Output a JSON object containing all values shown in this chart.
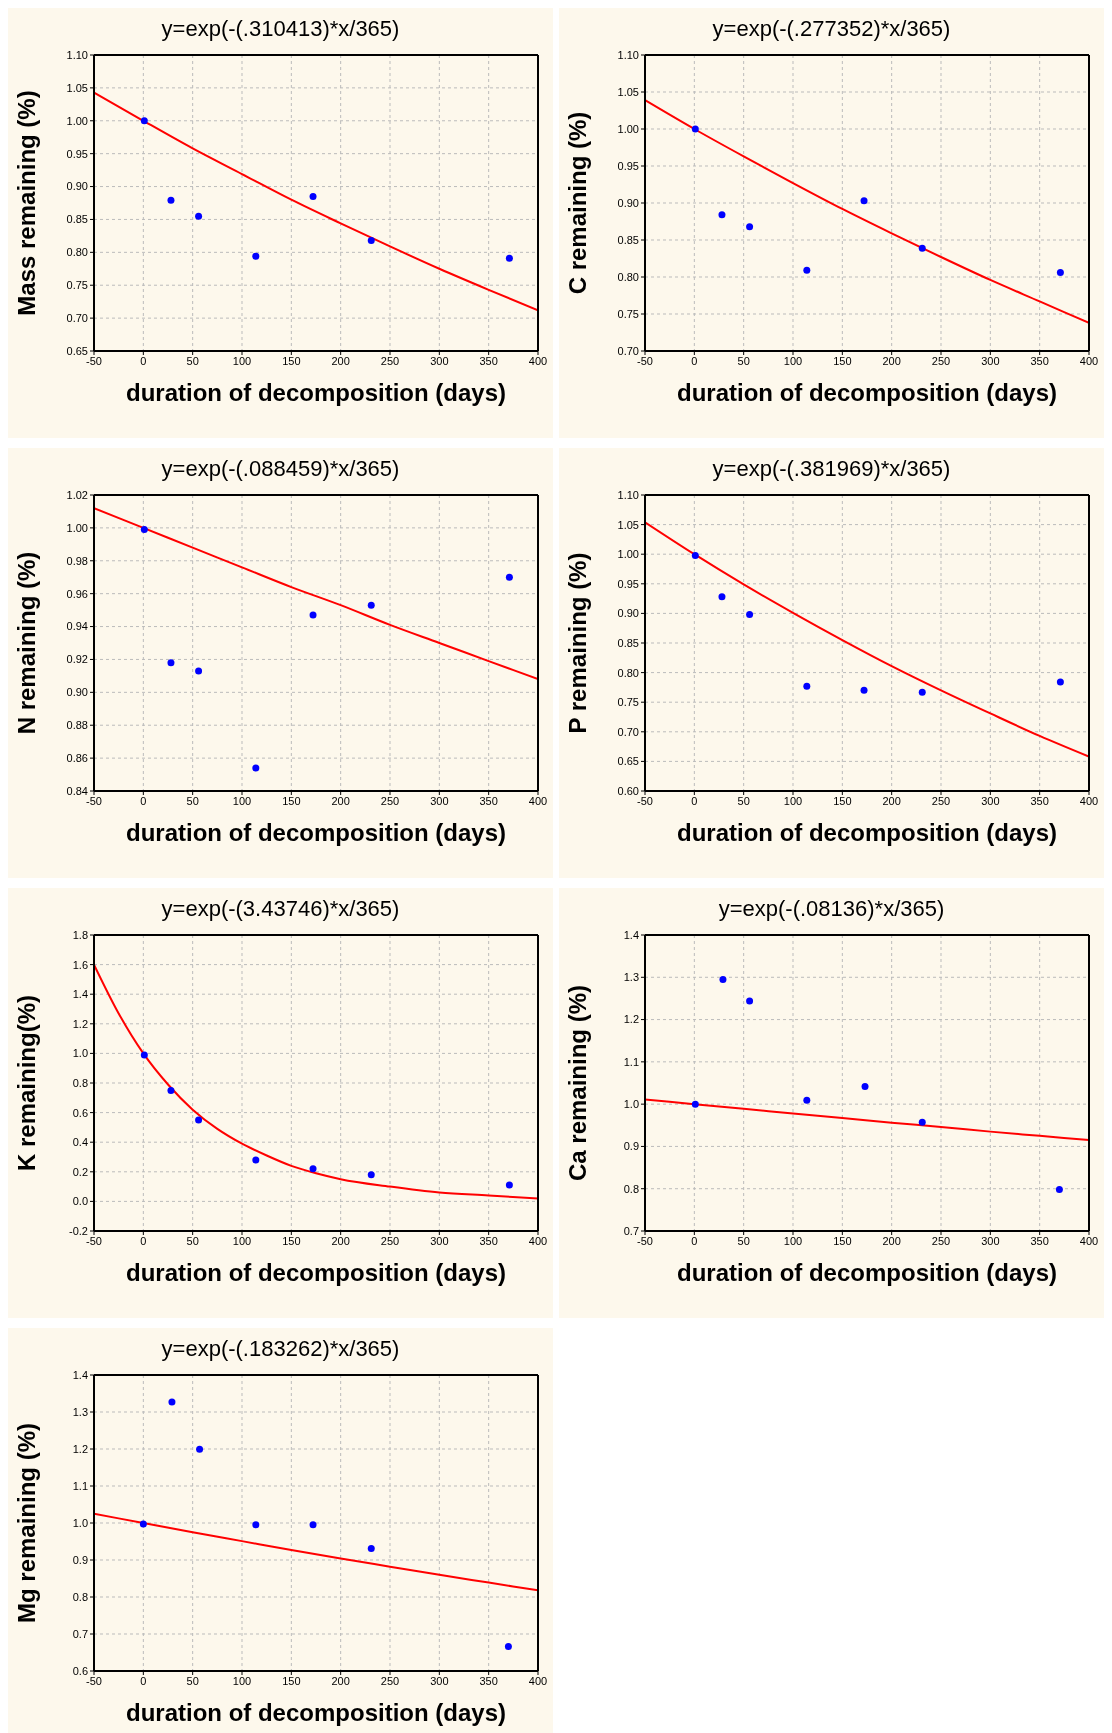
{
  "chart_data": [
    {
      "type": "scatter",
      "title": "y=exp(-(.310413)*x/365)",
      "xlabel": "duration of decomposition (days)",
      "ylabel": "Mass remaining (%)",
      "xlim": [
        -50,
        400
      ],
      "xticks": [
        -50,
        0,
        50,
        100,
        150,
        200,
        250,
        300,
        350,
        400
      ],
      "ylim": [
        0.65,
        1.1
      ],
      "yticks": [
        0.65,
        {
          "value": 0.7,
          "label": "0.70"
        },
        0.75,
        {
          "value": 0.8,
          "label": "0.80"
        },
        0.85,
        {
          "value": 0.9,
          "label": "0.90"
        },
        0.95,
        {
          "value": 1,
          "label": "1.00"
        },
        1.05,
        {
          "value": 1.1,
          "label": "1.10"
        }
      ],
      "grid": true,
      "series": [
        {
          "marker": "circle",
          "color": "#0000ff",
          "x": [
            1,
            28,
            56,
            114,
            172,
            231,
            371
          ],
          "values": [
            1.0,
            0.879,
            0.855,
            0.794,
            0.885,
            0.818,
            0.791
          ]
        },
        {
          "type": "line",
          "marker": "none",
          "color": "#ff0000",
          "x": [
            -50,
            0,
            50,
            100,
            150,
            200,
            250,
            300,
            350,
            400
          ],
          "values": [
            1.043,
            1.0,
            0.958,
            0.919,
            0.88,
            0.844,
            0.809,
            0.775,
            0.743,
            0.712
          ]
        }
      ]
    },
    {
      "type": "scatter",
      "title": "y=exp(-(.277352)*x/365)",
      "xlabel": "duration of decomposition (days)",
      "ylabel": "C remaining (%)",
      "xlim": [
        -50,
        400
      ],
      "xticks": [
        -50,
        0,
        50,
        100,
        150,
        200,
        250,
        300,
        350,
        400
      ],
      "ylim": [
        0.7,
        1.1
      ],
      "yticks": [
        {
          "value": 0.7,
          "label": "0.70"
        },
        0.75,
        {
          "value": 0.8,
          "label": "0.80"
        },
        0.85,
        {
          "value": 0.9,
          "label": "0.90"
        },
        0.95,
        {
          "value": 1,
          "label": "1.00"
        },
        1.05,
        {
          "value": 1.1,
          "label": "1.10"
        }
      ],
      "grid": true,
      "series": [
        {
          "marker": "circle",
          "color": "#0000ff",
          "x": [
            1,
            28,
            56,
            114,
            172,
            231,
            371
          ],
          "values": [
            1.0,
            0.884,
            0.868,
            0.809,
            0.903,
            0.839,
            0.806
          ]
        },
        {
          "type": "line",
          "marker": "none",
          "color": "#ff0000",
          "x": [
            -50,
            0,
            50,
            100,
            150,
            200,
            250,
            300,
            350,
            400
          ],
          "values": [
            1.039,
            1.0,
            0.963,
            0.927,
            0.892,
            0.859,
            0.827,
            0.796,
            0.767,
            0.738
          ]
        }
      ]
    },
    {
      "type": "scatter",
      "title": "y=exp(-(.088459)*x/365)",
      "xlabel": "duration of decomposition (days)",
      "ylabel": "N remaining (%)",
      "xlim": [
        -50,
        400
      ],
      "xticks": [
        -50,
        0,
        50,
        100,
        150,
        200,
        250,
        300,
        350,
        400
      ],
      "ylim": [
        0.84,
        1.02
      ],
      "yticks": [
        0.84,
        0.86,
        0.88,
        {
          "value": 0.9,
          "label": "0.90"
        },
        0.92,
        0.94,
        0.96,
        0.98,
        {
          "value": 1,
          "label": "1.00"
        },
        1.02
      ],
      "grid": true,
      "series": [
        {
          "marker": "circle",
          "color": "#0000ff",
          "x": [
            1,
            28,
            56,
            114,
            172,
            231,
            371
          ],
          "values": [
            0.999,
            0.918,
            0.913,
            0.854,
            0.947,
            0.953,
            0.97
          ]
        },
        {
          "type": "line",
          "marker": "none",
          "color": "#ff0000",
          "x": [
            -50,
            0,
            50,
            100,
            150,
            200,
            250,
            300,
            350,
            400
          ],
          "values": [
            1.012,
            1.0,
            0.988,
            0.976,
            0.964,
            0.953,
            0.941,
            0.93,
            0.919,
            0.908
          ]
        }
      ]
    },
    {
      "type": "scatter",
      "title": "y=exp(-(.381969)*x/365)",
      "xlabel": "duration of decomposition (days)",
      "ylabel": "P remaining (%)",
      "xlim": [
        -50,
        400
      ],
      "xticks": [
        -50,
        0,
        50,
        100,
        150,
        200,
        250,
        300,
        350,
        400
      ],
      "ylim": [
        0.6,
        1.1
      ],
      "yticks": [
        {
          "value": 0.6,
          "label": "0.60"
        },
        0.65,
        {
          "value": 0.7,
          "label": "0.70"
        },
        0.75,
        {
          "value": 0.8,
          "label": "0.80"
        },
        0.85,
        {
          "value": 0.9,
          "label": "0.90"
        },
        0.95,
        {
          "value": 1,
          "label": "1.00"
        },
        1.05,
        {
          "value": 1.1,
          "label": "1.10"
        }
      ],
      "grid": true,
      "series": [
        {
          "marker": "circle",
          "color": "#0000ff",
          "x": [
            1,
            28,
            56,
            114,
            172,
            231,
            371
          ],
          "values": [
            0.998,
            0.928,
            0.898,
            0.777,
            0.77,
            0.767,
            0.784
          ]
        },
        {
          "type": "line",
          "marker": "none",
          "color": "#ff0000",
          "x": [
            -50,
            0,
            50,
            100,
            150,
            200,
            250,
            300,
            350,
            400
          ],
          "values": [
            1.054,
            1.0,
            0.949,
            0.901,
            0.855,
            0.811,
            0.77,
            0.731,
            0.693,
            0.658
          ]
        }
      ]
    },
    {
      "type": "scatter",
      "title": "y=exp(-(3.43746)*x/365)",
      "xlabel": "duration of decomposition (days)",
      "ylabel": "K remaining(%)",
      "xlim": [
        -50,
        400
      ],
      "xticks": [
        -50,
        0,
        50,
        100,
        150,
        200,
        250,
        300,
        350,
        400
      ],
      "ylim": [
        -0.2,
        1.8
      ],
      "yticks": [
        -0.2,
        {
          "value": 0,
          "label": "0.0"
        },
        0.2,
        0.4,
        0.6,
        0.8,
        {
          "value": 1,
          "label": "1.0"
        },
        1.2,
        1.4,
        1.6,
        1.8
      ],
      "grid": true,
      "series": [
        {
          "marker": "circle",
          "color": "#0000ff",
          "x": [
            1,
            28,
            56,
            114,
            172,
            231,
            371
          ],
          "values": [
            0.99,
            0.75,
            0.55,
            0.28,
            0.22,
            0.18,
            0.11
          ]
        },
        {
          "type": "line",
          "marker": "none",
          "color": "#ff0000",
          "x": [
            -50,
            -25,
            0,
            25,
            50,
            75,
            100,
            125,
            150,
            175,
            200,
            250,
            300,
            350,
            400
          ],
          "values": [
            1.6,
            1.27,
            1.0,
            0.79,
            0.62,
            0.49,
            0.39,
            0.31,
            0.24,
            0.19,
            0.15,
            0.1,
            0.06,
            0.04,
            0.02
          ]
        }
      ]
    },
    {
      "type": "scatter",
      "title": "y=exp(-(.08136)*x/365)",
      "xlabel": "duration of decomposition (days)",
      "ylabel": "Ca remaining (%)",
      "xlim": [
        -50,
        400
      ],
      "xticks": [
        -50,
        0,
        50,
        100,
        150,
        200,
        250,
        300,
        350,
        400
      ],
      "ylim": [
        0.7,
        1.4
      ],
      "yticks": [
        0.7,
        0.8,
        0.9,
        {
          "value": 1,
          "label": "1.0"
        },
        1.1,
        1.2,
        1.3,
        1.4
      ],
      "grid": true,
      "series": [
        {
          "marker": "circle",
          "color": "#0000ff",
          "x": [
            1,
            29,
            56,
            114,
            173,
            231,
            370
          ],
          "values": [
            1.0,
            1.295,
            1.244,
            1.009,
            1.042,
            0.957,
            0.798
          ]
        },
        {
          "type": "line",
          "marker": "none",
          "color": "#ff0000",
          "x": [
            -50,
            0,
            50,
            100,
            150,
            200,
            250,
            300,
            350,
            400
          ],
          "values": [
            1.011,
            1.0,
            0.989,
            0.978,
            0.967,
            0.956,
            0.946,
            0.935,
            0.925,
            0.915
          ]
        }
      ]
    },
    {
      "type": "scatter",
      "title": "y=exp(-(.183262)*x/365)",
      "xlabel": "duration of decomposition (days)",
      "ylabel": "Mg remaining (%)",
      "xlim": [
        -50,
        400
      ],
      "xticks": [
        -50,
        0,
        50,
        100,
        150,
        200,
        250,
        300,
        350,
        400
      ],
      "ylim": [
        0.6,
        1.4
      ],
      "yticks": [
        0.6,
        0.7,
        0.8,
        0.9,
        {
          "value": 1,
          "label": "1.0"
        },
        1.1,
        1.2,
        1.3,
        1.4
      ],
      "grid": true,
      "series": [
        {
          "marker": "circle",
          "color": "#0000ff",
          "x": [
            0,
            29,
            57,
            114,
            172,
            231,
            370
          ],
          "values": [
            0.997,
            1.327,
            1.199,
            0.995,
            0.995,
            0.931,
            0.666
          ]
        },
        {
          "type": "line",
          "marker": "none",
          "color": "#ff0000",
          "x": [
            -50,
            0,
            50,
            100,
            150,
            200,
            250,
            300,
            350,
            400
          ],
          "values": [
            1.025,
            1.0,
            0.975,
            0.951,
            0.927,
            0.904,
            0.882,
            0.86,
            0.839,
            0.818
          ]
        }
      ]
    }
  ]
}
